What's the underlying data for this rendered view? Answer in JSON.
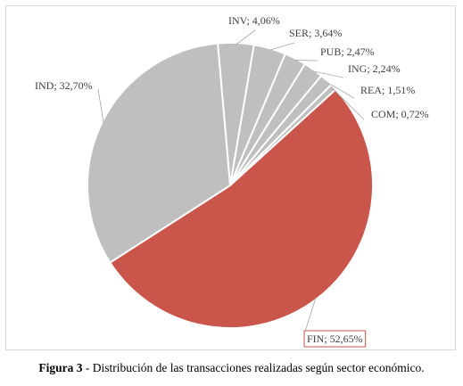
{
  "chart_data": {
    "type": "pie",
    "slices": [
      {
        "label": "INV; 4,06%",
        "category": "INV",
        "value": 4.06,
        "color": "#bfbfbf"
      },
      {
        "label": "SER; 3,64%",
        "category": "SER",
        "value": 3.64,
        "color": "#bfbfbf"
      },
      {
        "label": "PUB; 2,47%",
        "category": "PUB",
        "value": 2.47,
        "color": "#bfbfbf"
      },
      {
        "label": "ING; 2,24%",
        "category": "ING",
        "value": 2.24,
        "color": "#bfbfbf"
      },
      {
        "label": "REA; 1,51%",
        "category": "REA",
        "value": 1.51,
        "color": "#bfbfbf"
      },
      {
        "label": "COM; 0,72%",
        "category": "COM",
        "value": 0.72,
        "color": "#bfbfbf"
      },
      {
        "label": "FIN; 52,65%",
        "category": "FIN",
        "value": 52.65,
        "color": "#c9554b"
      },
      {
        "label": "IND; 32,70%",
        "category": "IND",
        "value": 32.7,
        "color": "#bfbfbf"
      }
    ],
    "legend": "none",
    "highlight_label_border_color": "#c9554b"
  },
  "caption": {
    "figure_label": "Figura 3",
    "text": " - Distribución de las transacciones realizadas según sector económico."
  }
}
